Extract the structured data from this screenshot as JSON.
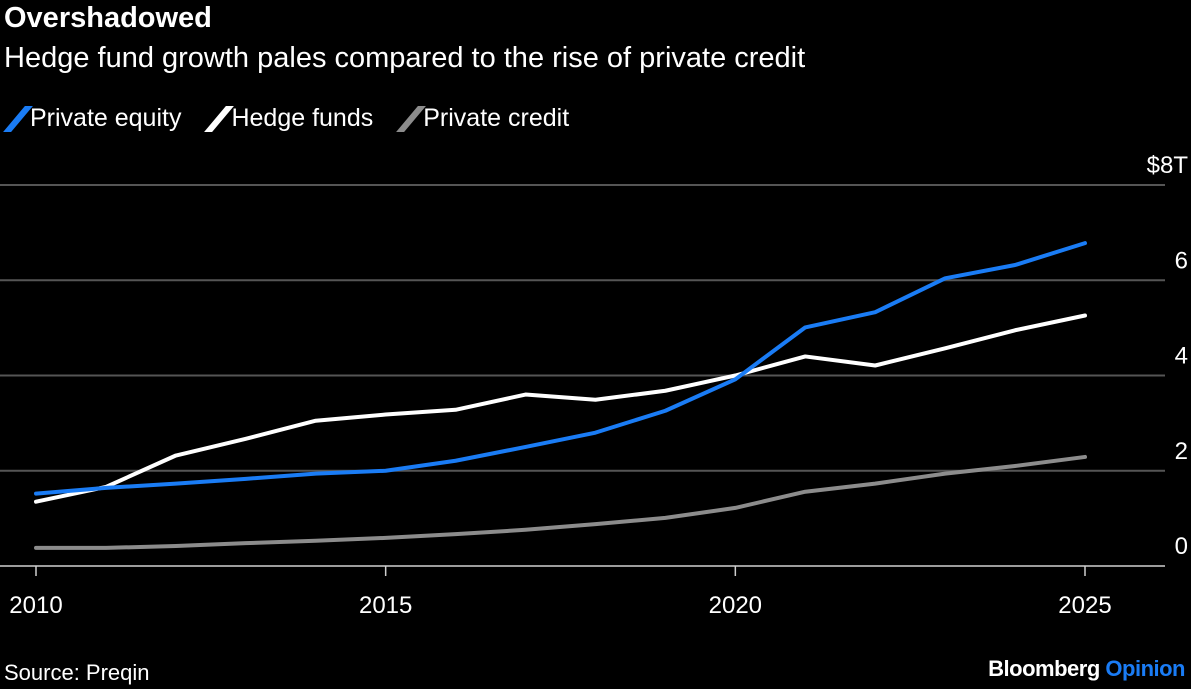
{
  "chart_data": {
    "type": "line",
    "title": "Overshadowed",
    "subtitle": "Hedge fund growth pales compared to the rise of private credit",
    "x": [
      2010,
      2011,
      2012,
      2013,
      2014,
      2015,
      2016,
      2017,
      2018,
      2019,
      2020,
      2021,
      2022,
      2023,
      2024,
      2025
    ],
    "xticks": [
      2010,
      2015,
      2020,
      2025
    ],
    "xtick_labels": [
      "2010",
      "2015",
      "2020",
      "2025"
    ],
    "yticks": [
      0,
      2,
      4,
      6,
      8
    ],
    "ytick_labels": [
      "0",
      "2",
      "4",
      "6",
      "$8T"
    ],
    "ylim": [
      0,
      8
    ],
    "xlim": [
      2010,
      2025
    ],
    "grid": true,
    "legend_placement": "top-left",
    "series": [
      {
        "name": "Private equity",
        "color": "#1a7cf5",
        "values": [
          1.52,
          1.64,
          1.73,
          1.83,
          1.94,
          2.0,
          2.21,
          2.5,
          2.8,
          3.26,
          3.92,
          5.01,
          5.33,
          6.04,
          6.32,
          6.78
        ]
      },
      {
        "name": "Hedge funds",
        "color": "#ffffff",
        "values": [
          1.35,
          1.66,
          2.32,
          2.67,
          3.05,
          3.18,
          3.28,
          3.6,
          3.49,
          3.68,
          4.0,
          4.4,
          4.21,
          4.57,
          4.95,
          5.26
        ]
      },
      {
        "name": "Private credit",
        "color": "#8c8c8c",
        "values": [
          0.38,
          0.38,
          0.42,
          0.48,
          0.53,
          0.59,
          0.67,
          0.76,
          0.88,
          1.01,
          1.22,
          1.56,
          1.73,
          1.94,
          2.1,
          2.29
        ]
      }
    ]
  },
  "footer": {
    "source": "Source: Preqin",
    "brand": "Bloomberg",
    "brand_accent": "Opinion"
  }
}
